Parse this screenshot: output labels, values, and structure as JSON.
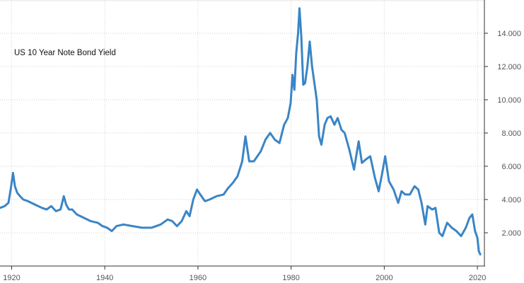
{
  "chart_data": {
    "type": "line",
    "title": "US 10 Year Note Bond Yield",
    "xlabel": "",
    "ylabel": "",
    "xlim": [
      1917.5,
      2021.5
    ],
    "ylim": [
      0,
      16
    ],
    "grid": true,
    "legend": "none",
    "x_ticks": [
      {
        "value": 1920,
        "label": "1920"
      },
      {
        "value": 1940,
        "label": "1940"
      },
      {
        "value": 1960,
        "label": "1960"
      },
      {
        "value": 1980,
        "label": "1980"
      },
      {
        "value": 2000,
        "label": "2000"
      },
      {
        "value": 2020,
        "label": "2020"
      }
    ],
    "y_ticks": [
      {
        "value": 2,
        "label": "2.000"
      },
      {
        "value": 4,
        "label": "4.000"
      },
      {
        "value": 6,
        "label": "6.000"
      },
      {
        "value": 8,
        "label": "8.000"
      },
      {
        "value": 10,
        "label": "10.000"
      },
      {
        "value": 12,
        "label": "12.000"
      },
      {
        "value": 14,
        "label": "14.000"
      }
    ],
    "series": [
      {
        "name": "",
        "color": "#3a85c6",
        "x": [
          1917.5,
          1918.5,
          1919.3,
          1919.8,
          1920.3,
          1920.7,
          1921.2,
          1921.8,
          1922.5,
          1923.5,
          1925,
          1926.5,
          1927.5,
          1928.5,
          1929.5,
          1930.5,
          1931.2,
          1931.7,
          1932.3,
          1933,
          1934,
          1935.5,
          1937,
          1938.5,
          1939.5,
          1940.5,
          1941.5,
          1942.5,
          1944,
          1946,
          1948,
          1950,
          1952,
          1953.5,
          1954.5,
          1955.5,
          1956.5,
          1957.5,
          1958.2,
          1959,
          1959.8,
          1960.5,
          1961.5,
          1962.5,
          1964,
          1965.5,
          1966.5,
          1967.5,
          1968.5,
          1969.5,
          1970.2,
          1971,
          1972,
          1973.5,
          1974.5,
          1975.5,
          1976.5,
          1977.5,
          1978.5,
          1979.3,
          1979.9,
          1980.3,
          1980.7,
          1981.1,
          1981.5,
          1981.8,
          1982.2,
          1982.6,
          1983,
          1983.5,
          1984,
          1984.5,
          1985,
          1985.5,
          1986,
          1986.5,
          1987.2,
          1987.8,
          1988.5,
          1989.3,
          1990,
          1990.8,
          1991.5,
          1992.5,
          1993.5,
          1994.5,
          1995.2,
          1996,
          1997,
          1998,
          1998.8,
          1999.5,
          2000.2,
          2001,
          2002,
          2003,
          2003.7,
          2004.5,
          2005.5,
          2006.5,
          2007.3,
          2008,
          2008.8,
          2009.3,
          2010.3,
          2011,
          2011.8,
          2012.5,
          2013.5,
          2014.5,
          2015.5,
          2016.5,
          2017.5,
          2018.3,
          2018.9,
          2019.5,
          2020,
          2020.3,
          2020.6
        ],
        "values": [
          3.5,
          3.6,
          3.8,
          4.6,
          5.6,
          4.8,
          4.4,
          4.2,
          4.0,
          3.9,
          3.7,
          3.5,
          3.4,
          3.6,
          3.3,
          3.4,
          4.2,
          3.7,
          3.4,
          3.4,
          3.1,
          2.9,
          2.7,
          2.6,
          2.4,
          2.3,
          2.1,
          2.4,
          2.5,
          2.4,
          2.3,
          2.3,
          2.5,
          2.8,
          2.7,
          2.4,
          2.7,
          3.3,
          3.0,
          4.0,
          4.6,
          4.3,
          3.9,
          4.0,
          4.2,
          4.3,
          4.7,
          5.0,
          5.4,
          6.3,
          7.8,
          6.3,
          6.3,
          6.9,
          7.6,
          8.0,
          7.6,
          7.4,
          8.5,
          8.9,
          9.8,
          11.5,
          10.6,
          12.8,
          14.0,
          15.5,
          13.8,
          10.9,
          11.0,
          12.0,
          13.5,
          12.0,
          11.0,
          10.0,
          7.8,
          7.3,
          8.5,
          8.9,
          9.0,
          8.5,
          8.9,
          8.2,
          8.0,
          7.0,
          5.8,
          7.5,
          6.2,
          6.4,
          6.6,
          5.3,
          4.5,
          5.5,
          6.6,
          5.1,
          4.6,
          3.8,
          4.5,
          4.3,
          4.3,
          4.8,
          4.6,
          3.8,
          2.5,
          3.6,
          3.4,
          3.5,
          2.0,
          1.8,
          2.6,
          2.3,
          2.1,
          1.8,
          2.3,
          2.9,
          3.1,
          2.1,
          1.7,
          0.9,
          0.7
        ]
      }
    ]
  }
}
